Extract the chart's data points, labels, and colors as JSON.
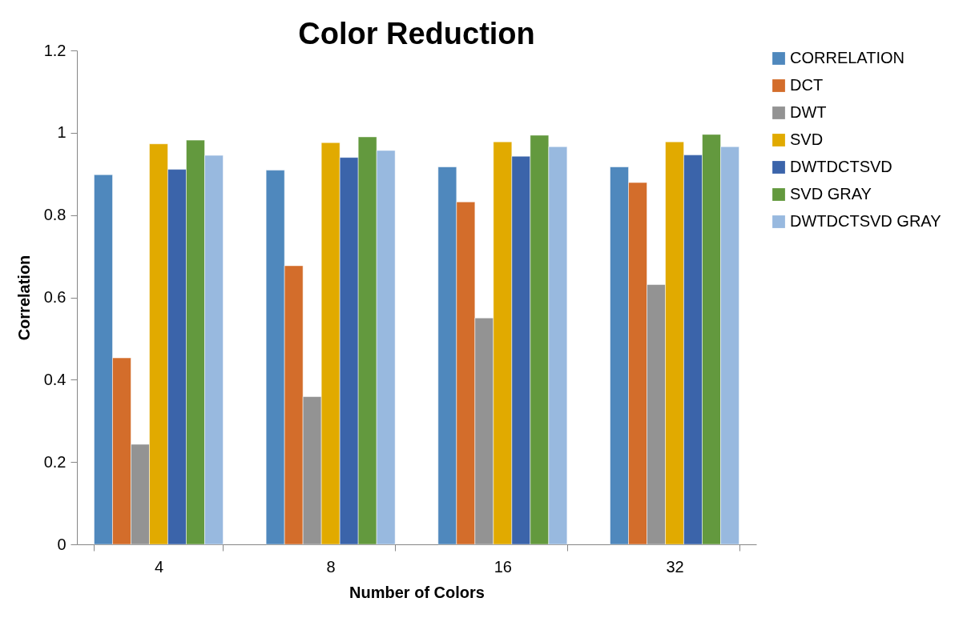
{
  "chart_data": {
    "type": "bar",
    "title": "Color Reduction",
    "xlabel": "Number of Colors",
    "ylabel": "Correlation",
    "categories": [
      "4",
      "8",
      "16",
      "32"
    ],
    "series": [
      {
        "name": "CORRELATION",
        "color": "#4f88bd",
        "values": [
          0.898,
          0.909,
          0.917,
          0.917
        ]
      },
      {
        "name": "DCT",
        "color": "#d36d2b",
        "values": [
          0.453,
          0.677,
          0.832,
          0.879
        ]
      },
      {
        "name": "DWT",
        "color": "#939393",
        "values": [
          0.243,
          0.359,
          0.55,
          0.631
        ]
      },
      {
        "name": "SVD",
        "color": "#e1aa00",
        "values": [
          0.973,
          0.976,
          0.978,
          0.978
        ]
      },
      {
        "name": "DWTDCTSVD",
        "color": "#3b64aa",
        "values": [
          0.911,
          0.94,
          0.943,
          0.946
        ]
      },
      {
        "name": "SVD GRAY",
        "color": "#63993e",
        "values": [
          0.982,
          0.99,
          0.994,
          0.996
        ]
      },
      {
        "name": "DWTDCTSVD GRAY",
        "color": "#98b9df",
        "values": [
          0.945,
          0.957,
          0.966,
          0.966
        ]
      }
    ],
    "ylim": [
      0,
      1.2
    ],
    "yticks": [
      0,
      0.2,
      0.4,
      0.6,
      0.8,
      1,
      1.2
    ],
    "grid": false,
    "legend": "right"
  }
}
